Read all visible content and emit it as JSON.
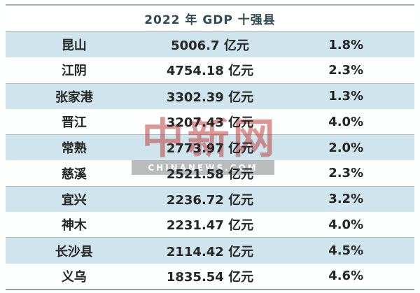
{
  "header": {
    "title": "2022 年 GDP 十强县"
  },
  "rows": [
    {
      "name": "昆山",
      "gdp": "5006.7 亿元",
      "growth": "1.8%"
    },
    {
      "name": "江阴",
      "gdp": "4754.18 亿元",
      "growth": "2.3%"
    },
    {
      "name": "张家港",
      "gdp": "3302.39 亿元",
      "growth": "1.3%"
    },
    {
      "name": "晋江",
      "gdp": "3207.43 亿元",
      "growth": "4.0%"
    },
    {
      "name": "常熟",
      "gdp": "2773.97 亿元",
      "growth": "2.0%"
    },
    {
      "name": "慈溪",
      "gdp": "2521.58 亿元",
      "growth": "2.3%"
    },
    {
      "name": "宜兴",
      "gdp": "2236.72 亿元",
      "growth": "3.2%"
    },
    {
      "name": "神木",
      "gdp": "2231.47 亿元",
      "growth": "4.0%"
    },
    {
      "name": "长沙县",
      "gdp": "2114.42 亿元",
      "growth": "4.5%"
    },
    {
      "name": "义乌",
      "gdp": "1835.54 亿元",
      "growth": "4.6%"
    }
  ],
  "watermark": {
    "logo_cn": "中新网",
    "logo_en": "CHINANEWS.COM"
  },
  "colors": {
    "row_shade": "#d0e4ee",
    "separator": "#b3bcbc",
    "frame_line": "#9aa4a4",
    "header_text": "#2e4a52",
    "body_text": "#262626",
    "watermark_red": "#ba302b"
  },
  "chart_data": {
    "type": "table",
    "title": "2022 年 GDP 十强县",
    "columns": [
      "county",
      "gdp",
      "growth_rate"
    ],
    "counties": [
      "昆山",
      "江阴",
      "张家港",
      "晋江",
      "常熟",
      "慈溪",
      "宜兴",
      "神木",
      "长沙县",
      "义乌"
    ],
    "gdp_yi_yuan": [
      5006.7,
      4754.18,
      3302.39,
      3207.43,
      2773.97,
      2521.58,
      2236.72,
      2231.47,
      2114.42,
      1835.54
    ],
    "growth_pct": [
      1.8,
      2.3,
      1.3,
      4.0,
      2.0,
      2.3,
      3.2,
      4.0,
      4.5,
      4.6
    ],
    "unit": "亿元",
    "layout": "alternating shaded rows, group separator line every 2 rows, no column headers"
  }
}
